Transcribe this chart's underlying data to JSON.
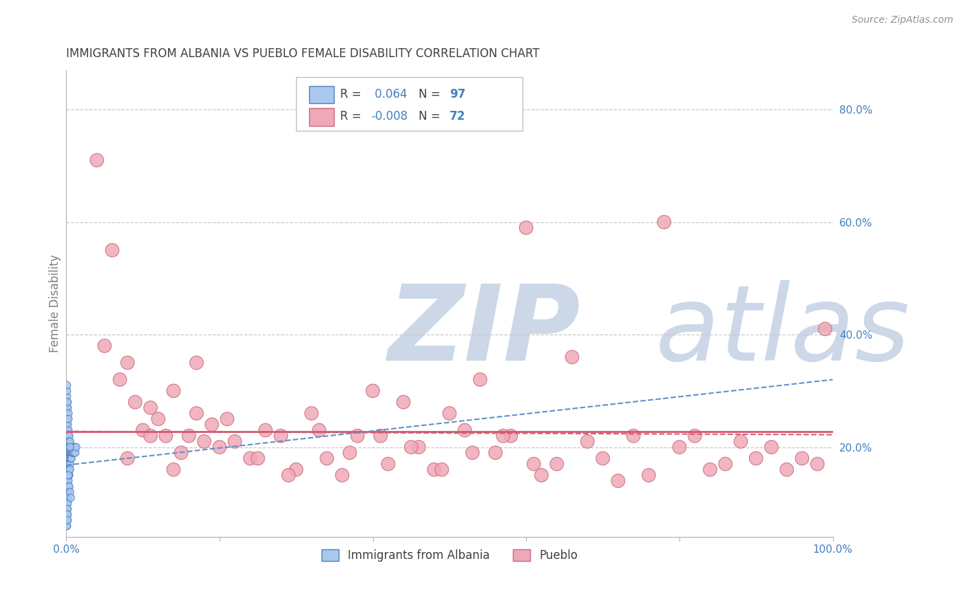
{
  "title": "IMMIGRANTS FROM ALBANIA VS PUEBLO FEMALE DISABILITY CORRELATION CHART",
  "source": "Source: ZipAtlas.com",
  "ylabel": "Female Disability",
  "ytick_labels": [
    "20.0%",
    "40.0%",
    "60.0%",
    "80.0%"
  ],
  "ytick_values": [
    0.2,
    0.4,
    0.6,
    0.8
  ],
  "xlim": [
    0.0,
    1.0
  ],
  "ylim": [
    0.04,
    0.87
  ],
  "legend_label1": "Immigrants from Albania",
  "legend_label2": "Pueblo",
  "r1": "0.064",
  "n1": "97",
  "r2": "-0.008",
  "n2": "72",
  "albania_color": "#a8c8f0",
  "pueblo_color": "#f0a8b8",
  "albania_edge": "#5080b8",
  "pueblo_edge": "#c86878",
  "trendline_albania_color": "#6090c8",
  "trendline_pueblo_color": "#c06878",
  "hline_color": "#e05070",
  "watermark_color": "#ccd8e8",
  "grid_color": "#c8c8c8",
  "background_color": "#ffffff",
  "title_color": "#404040",
  "axis_label_color": "#808080",
  "tick_color": "#4080c0",
  "albania_x": [
    0.001,
    0.001,
    0.001,
    0.001,
    0.001,
    0.001,
    0.001,
    0.001,
    0.001,
    0.001,
    0.001,
    0.001,
    0.001,
    0.001,
    0.001,
    0.001,
    0.001,
    0.001,
    0.001,
    0.001,
    0.002,
    0.002,
    0.002,
    0.002,
    0.002,
    0.002,
    0.002,
    0.002,
    0.002,
    0.002,
    0.002,
    0.002,
    0.002,
    0.002,
    0.002,
    0.003,
    0.003,
    0.003,
    0.003,
    0.003,
    0.003,
    0.003,
    0.003,
    0.003,
    0.004,
    0.004,
    0.004,
    0.004,
    0.004,
    0.004,
    0.005,
    0.005,
    0.005,
    0.005,
    0.005,
    0.006,
    0.006,
    0.006,
    0.007,
    0.007,
    0.007,
    0.008,
    0.008,
    0.009,
    0.009,
    0.01,
    0.01,
    0.011,
    0.012,
    0.013,
    0.001,
    0.001,
    0.002,
    0.002,
    0.003,
    0.003,
    0.004,
    0.004,
    0.005,
    0.005,
    0.001,
    0.002,
    0.003,
    0.001,
    0.002,
    0.003,
    0.001,
    0.001,
    0.001,
    0.001,
    0.001,
    0.002,
    0.002,
    0.003,
    0.004,
    0.005,
    0.006
  ],
  "albania_y": [
    0.22,
    0.21,
    0.2,
    0.19,
    0.18,
    0.17,
    0.16,
    0.15,
    0.14,
    0.13,
    0.12,
    0.11,
    0.1,
    0.09,
    0.23,
    0.24,
    0.25,
    0.08,
    0.07,
    0.06,
    0.21,
    0.2,
    0.19,
    0.18,
    0.17,
    0.16,
    0.15,
    0.14,
    0.13,
    0.12,
    0.11,
    0.1,
    0.09,
    0.22,
    0.23,
    0.21,
    0.2,
    0.19,
    0.18,
    0.17,
    0.16,
    0.15,
    0.14,
    0.13,
    0.2,
    0.19,
    0.18,
    0.17,
    0.16,
    0.15,
    0.2,
    0.19,
    0.18,
    0.17,
    0.16,
    0.2,
    0.19,
    0.18,
    0.2,
    0.19,
    0.18,
    0.2,
    0.19,
    0.2,
    0.19,
    0.2,
    0.19,
    0.2,
    0.19,
    0.2,
    0.26,
    0.27,
    0.25,
    0.24,
    0.23,
    0.22,
    0.22,
    0.21,
    0.21,
    0.2,
    0.28,
    0.27,
    0.26,
    0.29,
    0.28,
    0.25,
    0.3,
    0.31,
    0.08,
    0.07,
    0.06,
    0.08,
    0.07,
    0.15,
    0.13,
    0.12,
    0.11
  ],
  "albania_sizes": [
    60,
    60,
    60,
    60,
    60,
    60,
    60,
    60,
    60,
    60,
    60,
    60,
    60,
    60,
    60,
    60,
    60,
    60,
    60,
    60,
    60,
    60,
    60,
    60,
    60,
    60,
    60,
    60,
    60,
    60,
    60,
    60,
    60,
    60,
    60,
    60,
    60,
    60,
    60,
    60,
    60,
    60,
    60,
    60,
    60,
    60,
    60,
    60,
    60,
    60,
    60,
    60,
    60,
    60,
    60,
    60,
    60,
    60,
    60,
    60,
    60,
    60,
    60,
    60,
    60,
    60,
    60,
    60,
    60,
    60,
    60,
    60,
    60,
    60,
    60,
    60,
    60,
    60,
    60,
    60,
    60,
    60,
    60,
    60,
    60,
    60,
    60,
    60,
    60,
    60,
    60,
    60,
    60,
    60,
    60,
    60,
    60
  ],
  "pueblo_x": [
    0.04,
    0.06,
    0.07,
    0.08,
    0.09,
    0.1,
    0.11,
    0.12,
    0.13,
    0.14,
    0.15,
    0.16,
    0.17,
    0.18,
    0.19,
    0.2,
    0.22,
    0.24,
    0.26,
    0.28,
    0.3,
    0.32,
    0.34,
    0.36,
    0.38,
    0.4,
    0.42,
    0.44,
    0.46,
    0.48,
    0.5,
    0.52,
    0.54,
    0.56,
    0.58,
    0.6,
    0.62,
    0.64,
    0.66,
    0.68,
    0.7,
    0.72,
    0.74,
    0.76,
    0.78,
    0.8,
    0.82,
    0.84,
    0.86,
    0.88,
    0.9,
    0.92,
    0.94,
    0.96,
    0.98,
    0.99,
    0.05,
    0.08,
    0.11,
    0.14,
    0.17,
    0.21,
    0.25,
    0.29,
    0.33,
    0.37,
    0.41,
    0.45,
    0.49,
    0.53,
    0.57,
    0.61
  ],
  "pueblo_y": [
    0.71,
    0.55,
    0.32,
    0.35,
    0.28,
    0.23,
    0.27,
    0.25,
    0.22,
    0.3,
    0.19,
    0.22,
    0.26,
    0.21,
    0.24,
    0.2,
    0.21,
    0.18,
    0.23,
    0.22,
    0.16,
    0.26,
    0.18,
    0.15,
    0.22,
    0.3,
    0.17,
    0.28,
    0.2,
    0.16,
    0.26,
    0.23,
    0.32,
    0.19,
    0.22,
    0.59,
    0.15,
    0.17,
    0.36,
    0.21,
    0.18,
    0.14,
    0.22,
    0.15,
    0.6,
    0.2,
    0.22,
    0.16,
    0.17,
    0.21,
    0.18,
    0.2,
    0.16,
    0.18,
    0.17,
    0.41,
    0.38,
    0.18,
    0.22,
    0.16,
    0.35,
    0.25,
    0.18,
    0.15,
    0.23,
    0.19,
    0.22,
    0.2,
    0.16,
    0.19,
    0.22,
    0.17
  ],
  "pueblo_sizes": [
    200,
    200,
    200,
    200,
    200,
    200,
    200,
    200,
    200,
    200,
    200,
    200,
    200,
    200,
    200,
    200,
    200,
    200,
    200,
    200,
    200,
    200,
    200,
    200,
    200,
    200,
    200,
    200,
    200,
    200,
    200,
    200,
    200,
    200,
    200,
    200,
    200,
    200,
    200,
    200,
    200,
    200,
    200,
    200,
    200,
    200,
    200,
    200,
    200,
    200,
    200,
    200,
    200,
    200,
    200,
    200,
    200,
    200,
    200,
    200,
    200,
    200,
    200,
    200,
    200,
    200,
    200,
    200,
    200,
    200,
    200,
    200
  ],
  "albania_trend_x": [
    0.0,
    1.0
  ],
  "albania_trend_y": [
    0.168,
    0.32
  ],
  "pueblo_trend_x": [
    0.0,
    1.0
  ],
  "pueblo_trend_y": [
    0.228,
    0.222
  ],
  "hline_y": 0.228
}
